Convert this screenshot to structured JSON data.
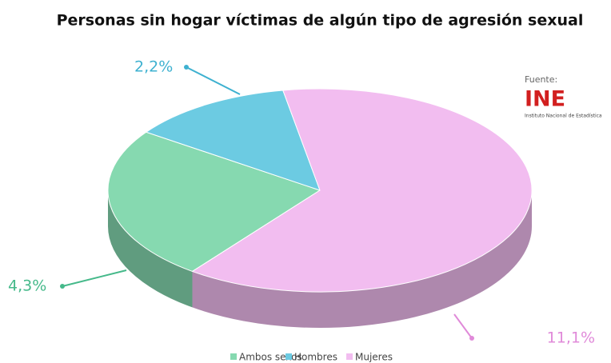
{
  "chart_data": {
    "type": "pie",
    "title": "Personas sin hogar víctimas de algún tipo de agresión sexual",
    "categories": [
      "Ambos sexos",
      "Hombres",
      "Mujeres"
    ],
    "values": [
      4.3,
      2.2,
      11.1
    ],
    "value_labels": [
      "4,3%",
      "2,2%",
      "11,1%"
    ],
    "colors": [
      "#86d9b0",
      "#6ccbe2",
      "#f2bdf0"
    ],
    "label_colors": [
      "#45b98a",
      "#3eb1d0",
      "#e08ad9"
    ],
    "legend": "bottom",
    "source": {
      "label": "Fuente:",
      "logo": "INE",
      "org": "Instituto Nacional de Estadística"
    }
  }
}
